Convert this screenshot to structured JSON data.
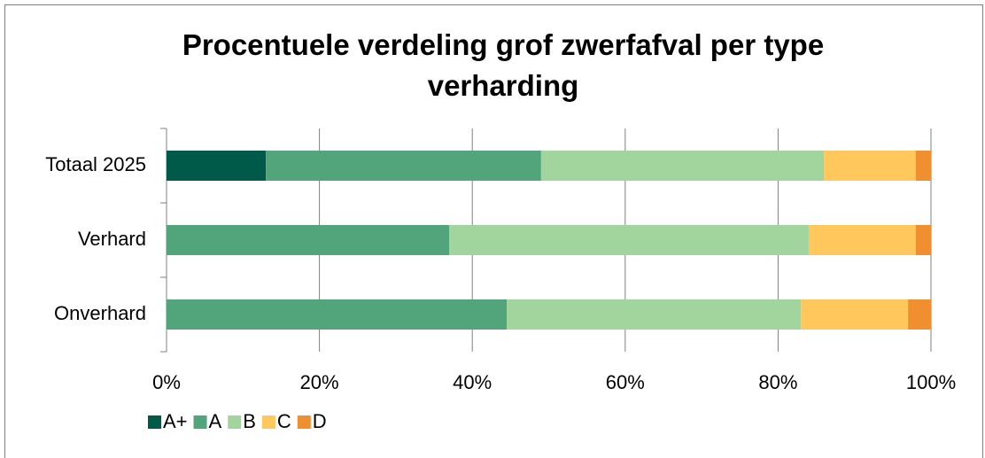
{
  "chart_data": {
    "type": "stacked-barh",
    "title": "Procentuele verdeling grof zwerfafval per type verharding",
    "categories": [
      "Totaal 2025",
      "Verhard",
      "Onverhard"
    ],
    "series": [
      {
        "name": "A+",
        "color": "#005a4a",
        "values": [
          13,
          0,
          0
        ]
      },
      {
        "name": "A",
        "color": "#52a47a",
        "values": [
          36,
          37,
          44.5
        ]
      },
      {
        "name": "B",
        "color": "#a2d59e",
        "values": [
          37,
          47,
          38.5
        ]
      },
      {
        "name": "C",
        "color": "#ffc75c",
        "values": [
          12,
          14,
          14
        ]
      },
      {
        "name": "D",
        "color": "#ef8f2f",
        "values": [
          2,
          2,
          3
        ]
      }
    ],
    "xlim": [
      0,
      100
    ],
    "xticks": [
      {
        "value": 0,
        "label": "0%"
      },
      {
        "value": 20,
        "label": "20%"
      },
      {
        "value": 40,
        "label": "40%"
      },
      {
        "value": 60,
        "label": "60%"
      },
      {
        "value": 80,
        "label": "80%"
      },
      {
        "value": 100,
        "label": "100%"
      }
    ],
    "grid": true,
    "legend": "bottom-left"
  }
}
